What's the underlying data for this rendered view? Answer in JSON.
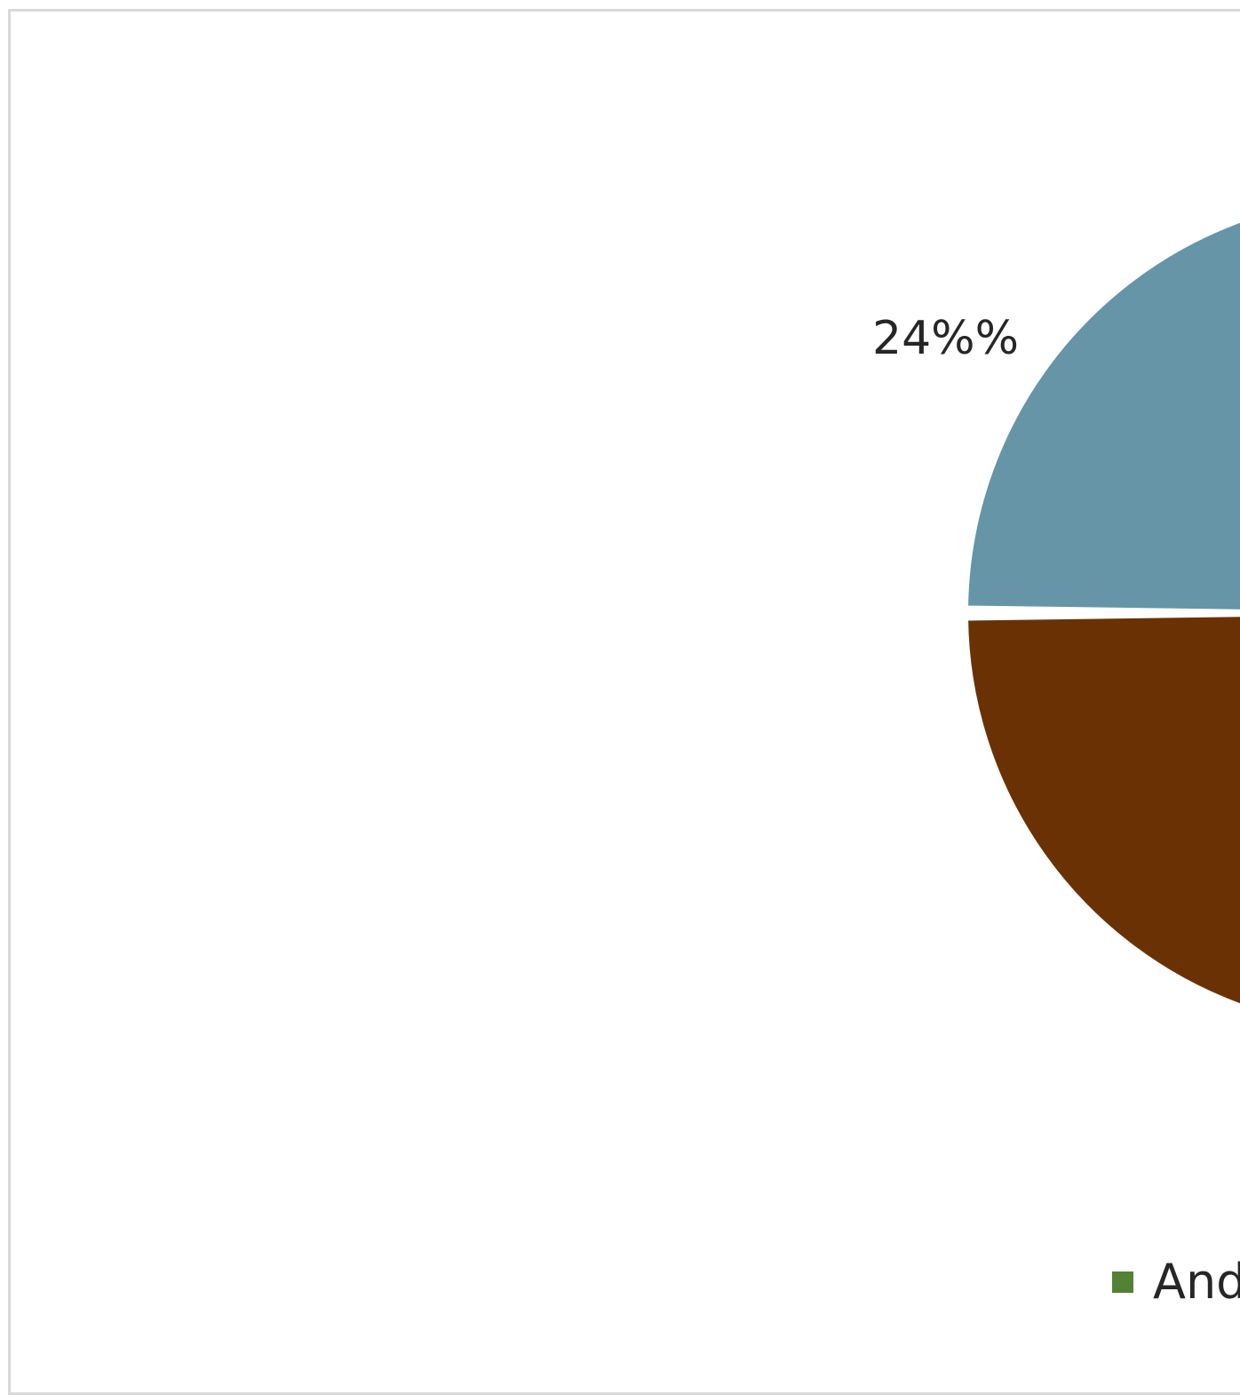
{
  "chart_data": {
    "type": "pie",
    "slices": [
      {
        "label": "",
        "value": 24,
        "color": "#6595a7"
      },
      {
        "label": "",
        "value": null,
        "color": "#6a3204"
      }
    ],
    "data_labels": [
      "24%%"
    ],
    "legend": [
      {
        "label": "And",
        "color": "#548235"
      }
    ],
    "legend_position": "bottom"
  }
}
